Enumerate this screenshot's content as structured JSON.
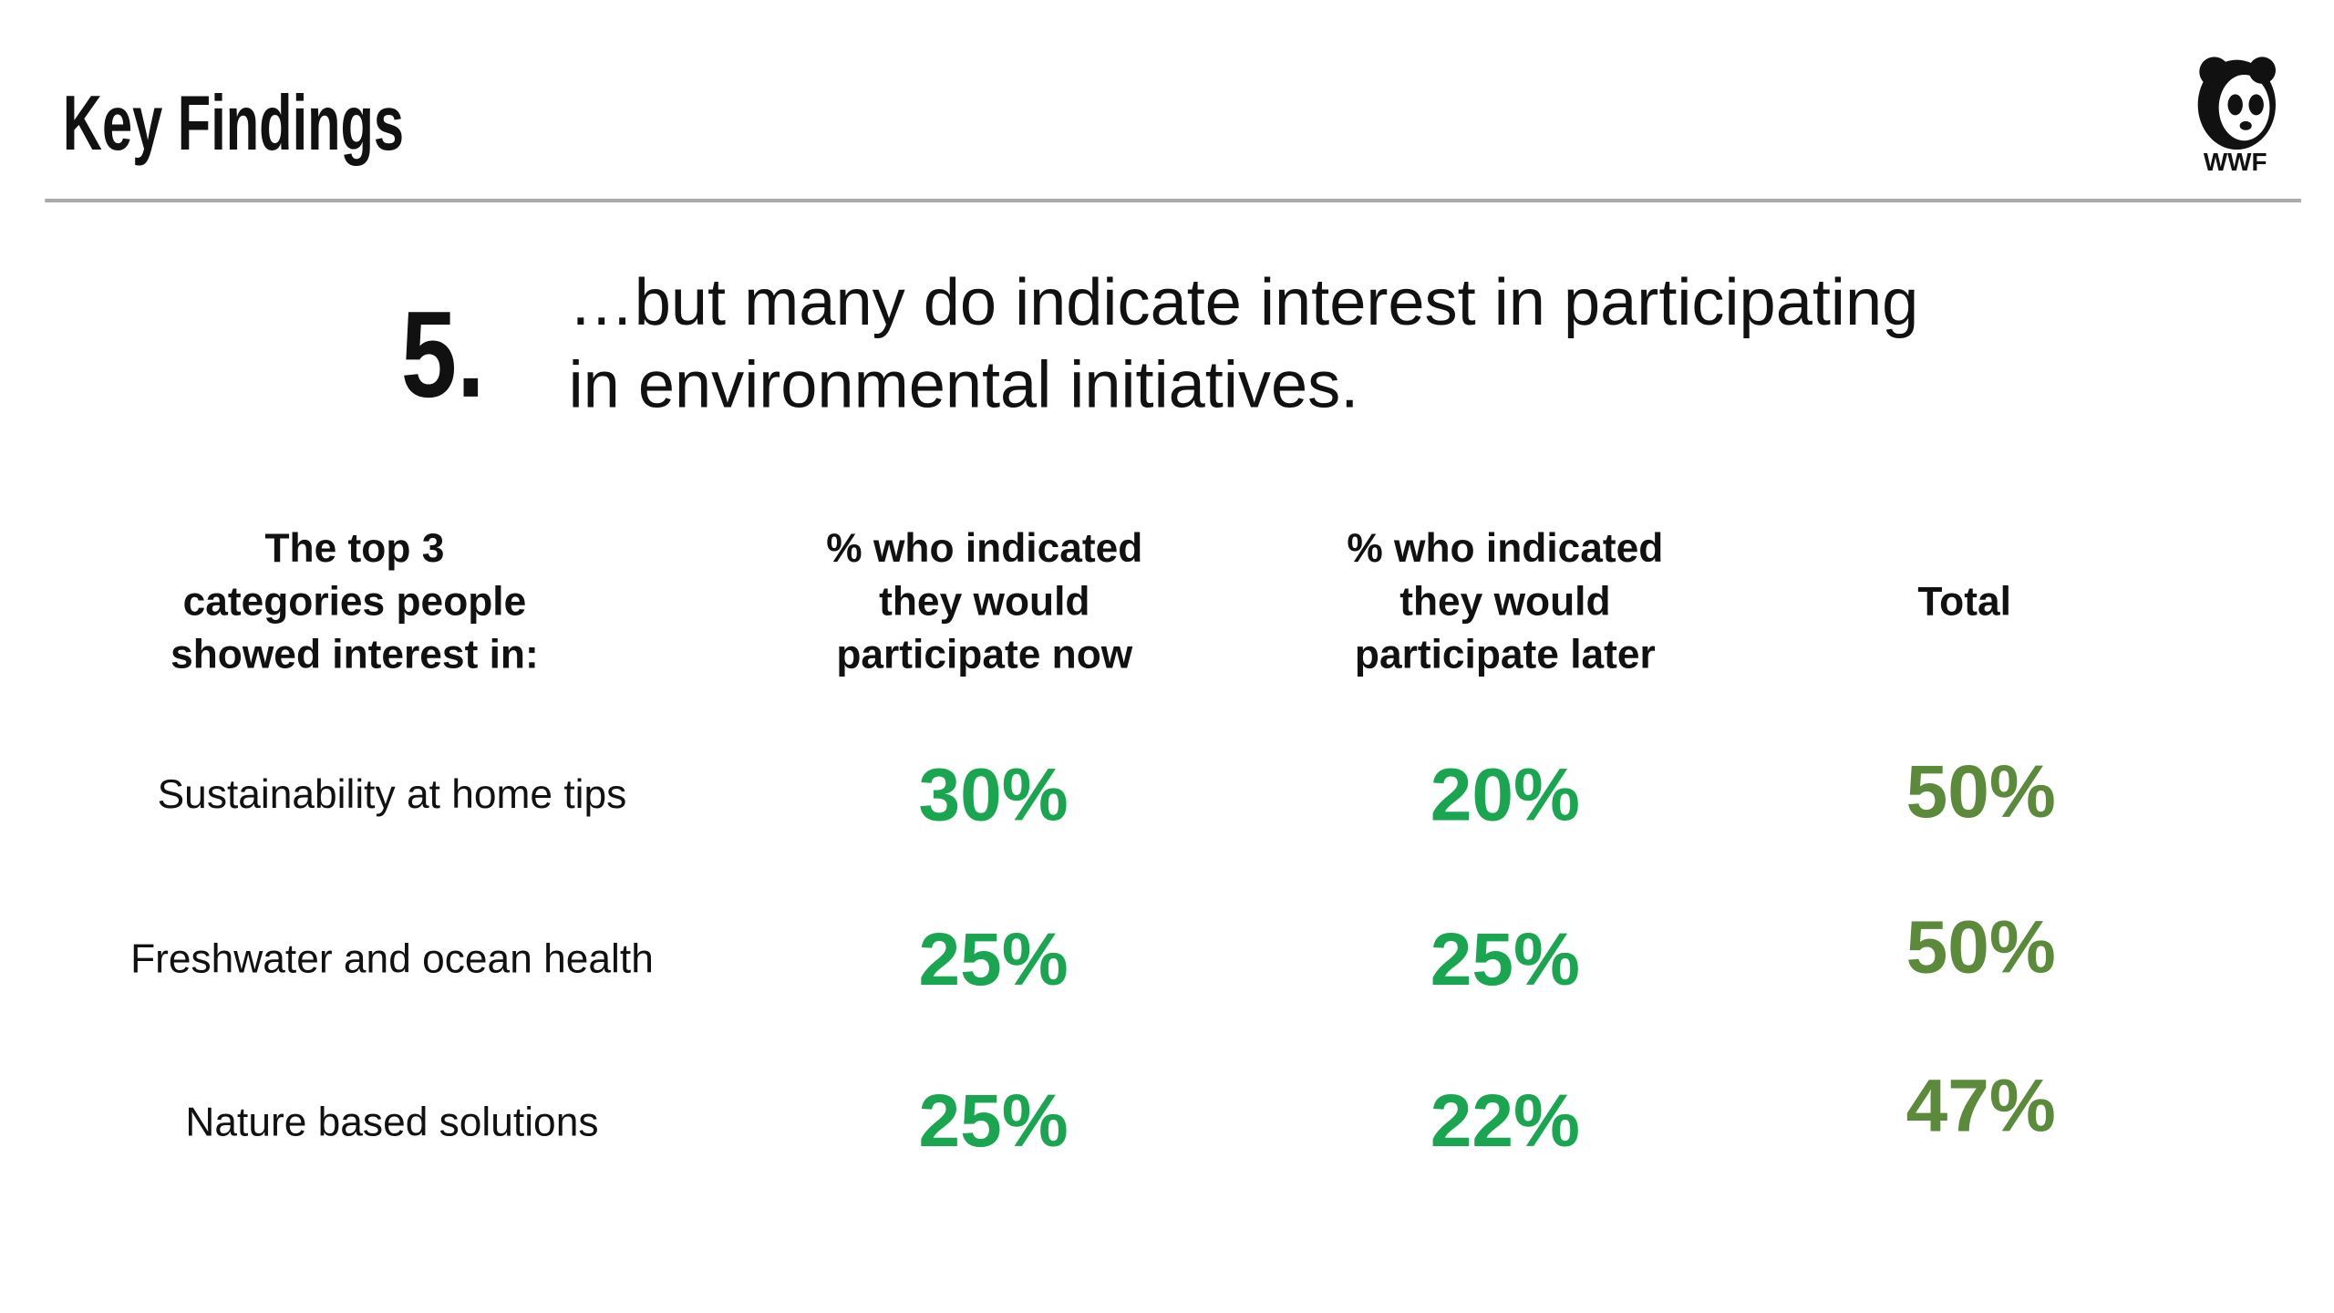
{
  "header": {
    "title": "Key Findings",
    "logo": "WWF"
  },
  "finding": {
    "number": "5.",
    "lines": [
      "…but many do indicate interest in participating",
      "in environmental initiatives."
    ]
  },
  "table": {
    "headers": [
      [
        "The top 3",
        "categories people",
        "showed interest in:"
      ],
      [
        "% who indicated",
        "they would",
        "participate now"
      ],
      [
        "% who indicated",
        "they would",
        "participate later"
      ],
      [
        "Total"
      ]
    ],
    "rows": [
      {
        "label": "Sustainability at home tips",
        "values": [
          "30%",
          "20%",
          "50%"
        ]
      },
      {
        "label": "Freshwater and ocean health",
        "values": [
          "25%",
          "25%",
          "50%"
        ]
      },
      {
        "label": "Nature based solutions",
        "values": [
          "25%",
          "22%",
          "47%"
        ]
      }
    ]
  }
}
